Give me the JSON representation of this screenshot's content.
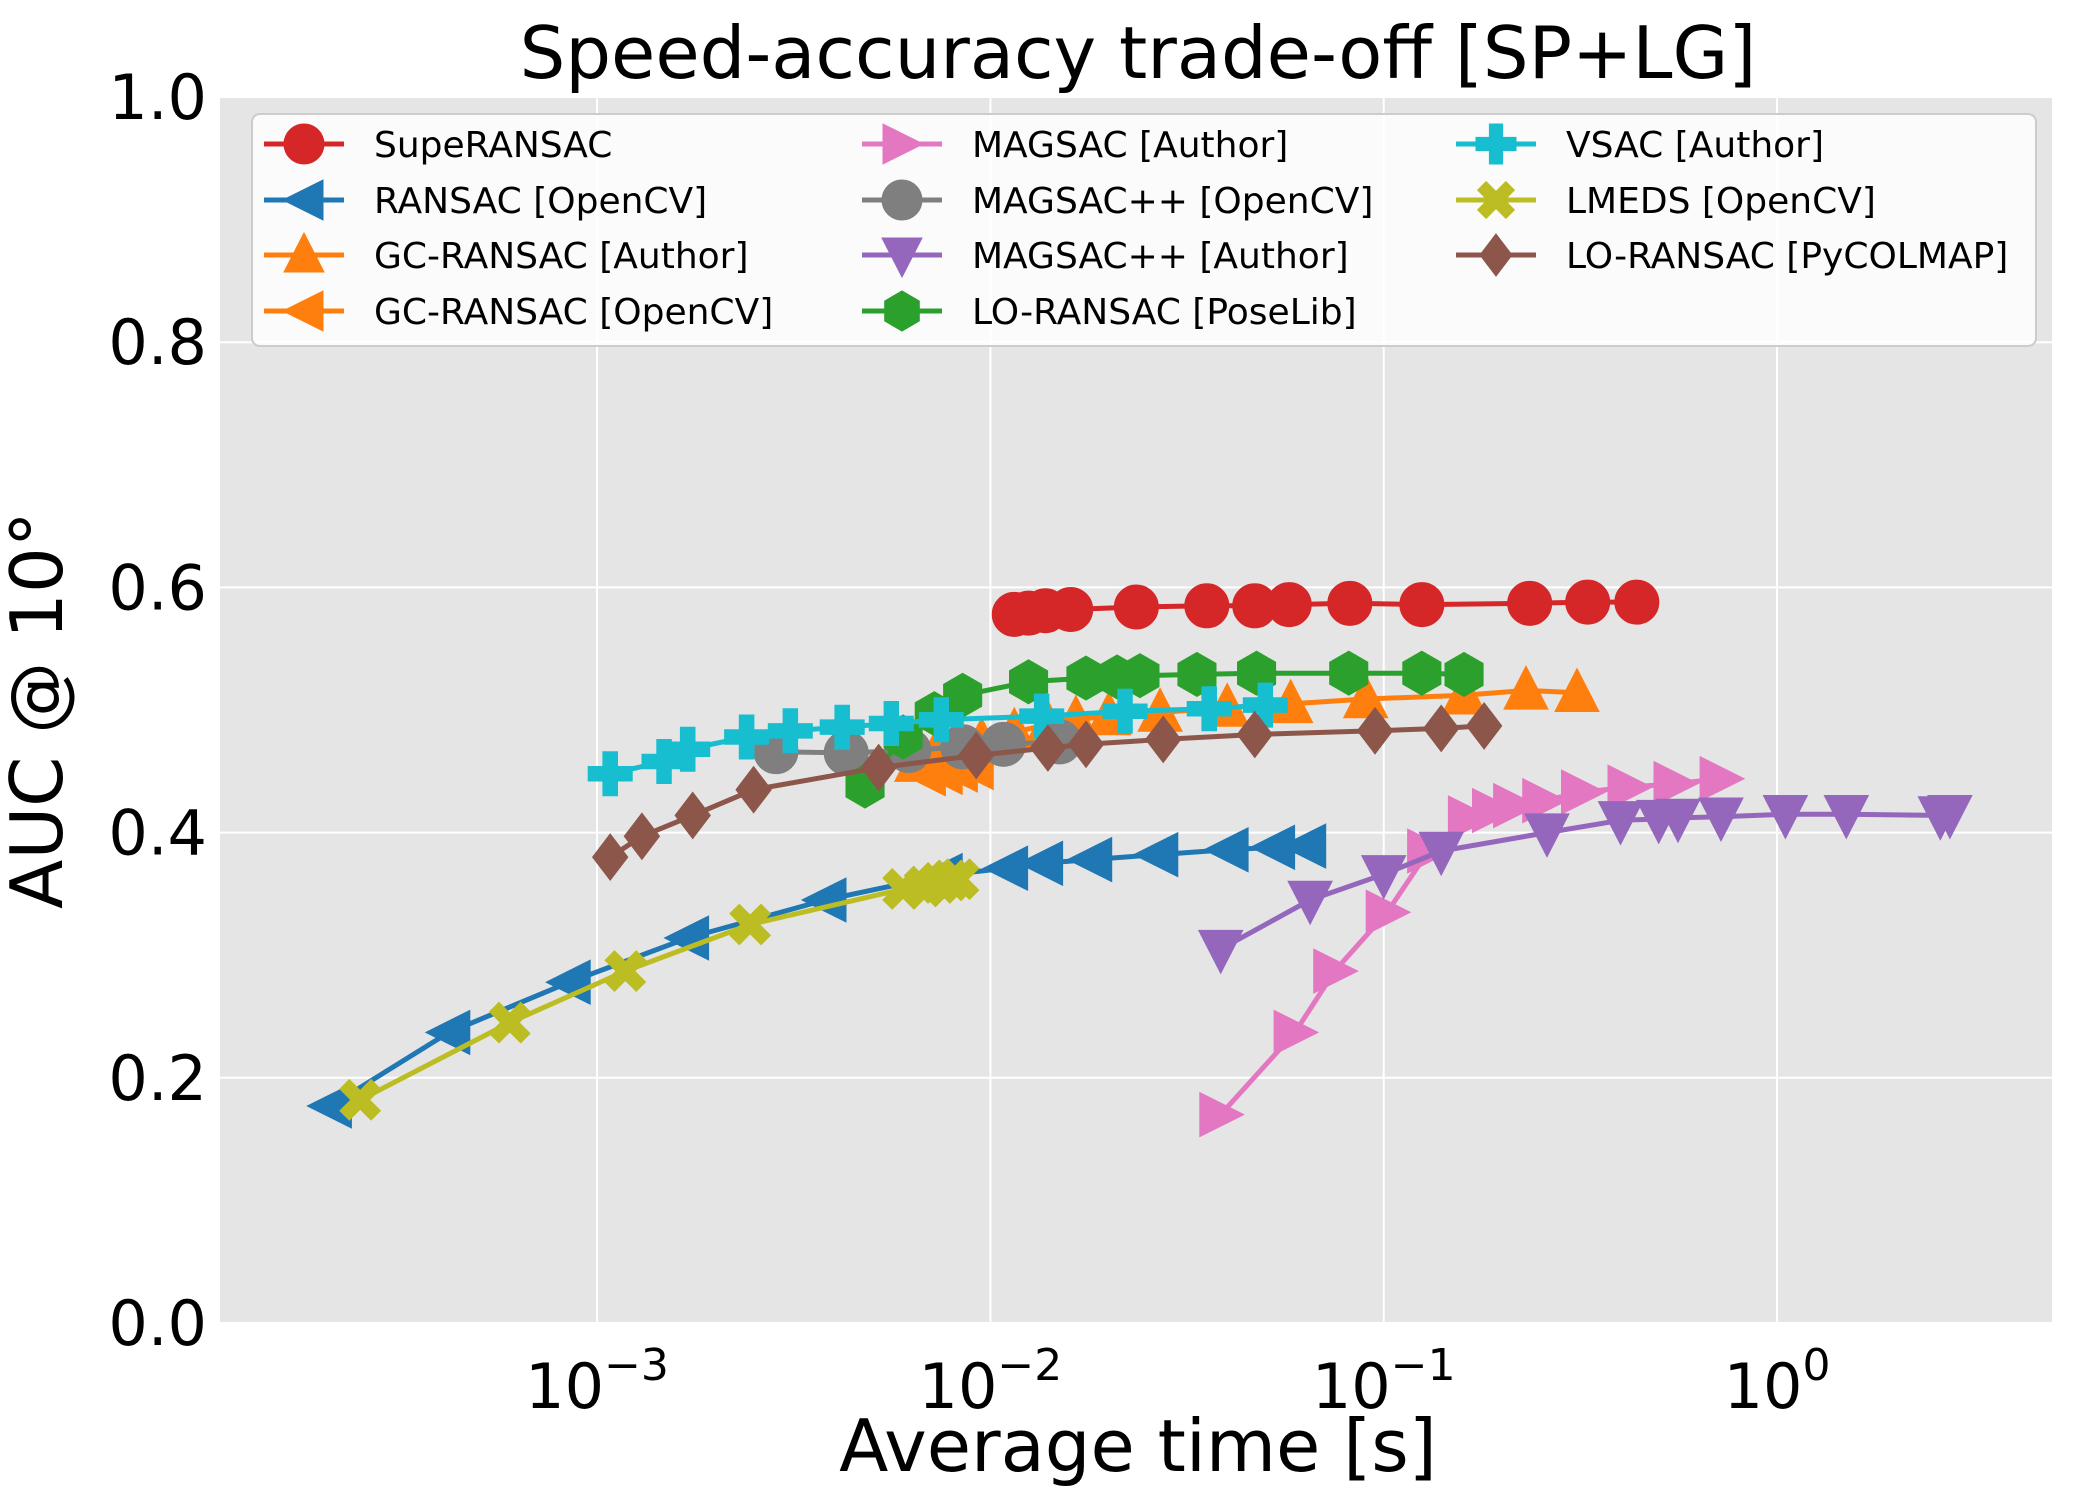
{
  "chart_data": {
    "type": "line",
    "title": "Speed-accuracy trade-off [SP+LG]",
    "xlabel": "Average time [s]",
    "ylabel": "AUC @ 10°",
    "xscale": "log",
    "xlim": [
      0.00011,
      5.0
    ],
    "ylim": [
      0.0,
      1.0
    ],
    "xticks": [
      {
        "value": 0.001,
        "base": "10",
        "exp": "−3"
      },
      {
        "value": 0.01,
        "base": "10",
        "exp": "−2"
      },
      {
        "value": 0.1,
        "base": "10",
        "exp": "−1"
      },
      {
        "value": 1,
        "base": "10",
        "exp": "0"
      }
    ],
    "yticks": [
      {
        "value": 0.0,
        "label": "0.0"
      },
      {
        "value": 0.2,
        "label": "0.2"
      },
      {
        "value": 0.4,
        "label": "0.4"
      },
      {
        "value": 0.6,
        "label": "0.6"
      },
      {
        "value": 0.8,
        "label": "0.8"
      },
      {
        "value": 1.0,
        "label": "1.0"
      }
    ],
    "grid": true,
    "legend_position": "top",
    "series": [
      {
        "name": "SupeRANSAC",
        "color": "#d62728",
        "marker": "circle",
        "points": [
          [
            0.0115,
            0.578
          ],
          [
            0.0125,
            0.579
          ],
          [
            0.0138,
            0.581
          ],
          [
            0.016,
            0.582
          ],
          [
            0.0235,
            0.584
          ],
          [
            0.0355,
            0.585
          ],
          [
            0.047,
            0.585
          ],
          [
            0.0575,
            0.586
          ],
          [
            0.082,
            0.587
          ],
          [
            0.125,
            0.586
          ],
          [
            0.235,
            0.587
          ],
          [
            0.33,
            0.588
          ],
          [
            0.44,
            0.588
          ]
        ]
      },
      {
        "name": "RANSAC [OpenCV]",
        "color": "#1f77b4",
        "marker": "triangle-left",
        "points": [
          [
            0.00021,
            0.177
          ],
          [
            0.00042,
            0.237
          ],
          [
            0.00085,
            0.278
          ],
          [
            0.0017,
            0.314
          ],
          [
            0.0038,
            0.345
          ],
          [
            0.0075,
            0.365
          ],
          [
            0.011,
            0.371
          ],
          [
            0.0135,
            0.375
          ],
          [
            0.018,
            0.378
          ],
          [
            0.0265,
            0.382
          ],
          [
            0.04,
            0.386
          ],
          [
            0.0525,
            0.388
          ],
          [
            0.063,
            0.389
          ]
        ]
      },
      {
        "name": "GC-RANSAC [Author]",
        "color": "#ff7f0e",
        "marker": "triangle-up",
        "points": [
          [
            0.0065,
            0.457
          ],
          [
            0.0072,
            0.462
          ],
          [
            0.0082,
            0.468
          ],
          [
            0.0095,
            0.474
          ],
          [
            0.0115,
            0.482
          ],
          [
            0.014,
            0.488
          ],
          [
            0.0165,
            0.492
          ],
          [
            0.02,
            0.495
          ],
          [
            0.027,
            0.498
          ],
          [
            0.04,
            0.502
          ],
          [
            0.058,
            0.505
          ],
          [
            0.09,
            0.509
          ],
          [
            0.16,
            0.512
          ],
          [
            0.23,
            0.516
          ],
          [
            0.31,
            0.514
          ]
        ]
      },
      {
        "name": "GC-RANSAC [OpenCV]",
        "color": "#ff7f0e",
        "marker": "triangle-left",
        "points": [
          [
            0.0068,
            0.448
          ],
          [
            0.0075,
            0.449
          ],
          [
            0.0082,
            0.451
          ],
          [
            0.009,
            0.453
          ]
        ]
      },
      {
        "name": "MAGSAC [Author]",
        "color": "#e377c2",
        "marker": "triangle-right",
        "points": [
          [
            0.0385,
            0.17
          ],
          [
            0.0595,
            0.237
          ],
          [
            0.075,
            0.287
          ],
          [
            0.102,
            0.335
          ],
          [
            0.13,
            0.385
          ],
          [
            0.165,
            0.412
          ],
          [
            0.19,
            0.418
          ],
          [
            0.215,
            0.422
          ],
          [
            0.255,
            0.426
          ],
          [
            0.32,
            0.433
          ],
          [
            0.42,
            0.437
          ],
          [
            0.55,
            0.44
          ],
          [
            0.72,
            0.444
          ]
        ]
      },
      {
        "name": "MAGSAC++ [OpenCV]",
        "color": "#7f7f7f",
        "marker": "circle",
        "points": [
          [
            0.00285,
            0.466
          ],
          [
            0.0043,
            0.465
          ],
          [
            0.0062,
            0.467
          ],
          [
            0.0085,
            0.47
          ],
          [
            0.0108,
            0.472
          ],
          [
            0.015,
            0.474
          ]
        ]
      },
      {
        "name": "MAGSAC++ [Author]",
        "color": "#9467bd",
        "marker": "triangle-down",
        "points": [
          [
            0.0385,
            0.305
          ],
          [
            0.065,
            0.345
          ],
          [
            0.1,
            0.366
          ],
          [
            0.14,
            0.385
          ],
          [
            0.26,
            0.4
          ],
          [
            0.4,
            0.41
          ],
          [
            0.5,
            0.411
          ],
          [
            0.56,
            0.412
          ],
          [
            0.72,
            0.413
          ],
          [
            1.05,
            0.415
          ],
          [
            1.5,
            0.415
          ],
          [
            2.6,
            0.414
          ],
          [
            2.75,
            0.415
          ]
        ]
      },
      {
        "name": "LO-RANSAC [PoseLib]",
        "color": "#2ca02c",
        "marker": "hexagon",
        "points": [
          [
            0.0048,
            0.438
          ],
          [
            0.006,
            0.478
          ],
          [
            0.0072,
            0.497
          ],
          [
            0.0085,
            0.512
          ],
          [
            0.0125,
            0.523
          ],
          [
            0.0175,
            0.526
          ],
          [
            0.021,
            0.527
          ],
          [
            0.024,
            0.528
          ],
          [
            0.0335,
            0.529
          ],
          [
            0.0475,
            0.53
          ],
          [
            0.0815,
            0.53
          ],
          [
            0.125,
            0.53
          ],
          [
            0.16,
            0.529
          ]
        ]
      },
      {
        "name": "VSAC [Author]",
        "color": "#17becf",
        "marker": "plus",
        "points": [
          [
            0.00108,
            0.448
          ],
          [
            0.00148,
            0.458
          ],
          [
            0.0017,
            0.468
          ],
          [
            0.0024,
            0.478
          ],
          [
            0.0031,
            0.483
          ],
          [
            0.0042,
            0.486
          ],
          [
            0.0056,
            0.489
          ],
          [
            0.0075,
            0.492
          ],
          [
            0.0135,
            0.495
          ],
          [
            0.022,
            0.499
          ],
          [
            0.036,
            0.501
          ],
          [
            0.05,
            0.504
          ]
        ]
      },
      {
        "name": "LMEDS [OpenCV]",
        "color": "#bcbd22",
        "marker": "x",
        "points": [
          [
            0.00025,
            0.182
          ],
          [
            0.0006,
            0.245
          ],
          [
            0.00118,
            0.287
          ],
          [
            0.00245,
            0.325
          ],
          [
            0.006,
            0.354
          ],
          [
            0.0068,
            0.356
          ],
          [
            0.0074,
            0.359
          ],
          [
            0.0079,
            0.361
          ],
          [
            0.0083,
            0.362
          ]
        ]
      },
      {
        "name": "LO-RANSAC [PyCOLMAP]",
        "color": "#8c564b",
        "marker": "diamond",
        "points": [
          [
            0.00108,
            0.38
          ],
          [
            0.0013,
            0.397
          ],
          [
            0.00175,
            0.414
          ],
          [
            0.0025,
            0.435
          ],
          [
            0.0052,
            0.453
          ],
          [
            0.0092,
            0.463
          ],
          [
            0.014,
            0.469
          ],
          [
            0.0175,
            0.472
          ],
          [
            0.0275,
            0.476
          ],
          [
            0.047,
            0.48
          ],
          [
            0.095,
            0.483
          ],
          [
            0.14,
            0.485
          ],
          [
            0.18,
            0.487
          ]
        ]
      }
    ]
  }
}
